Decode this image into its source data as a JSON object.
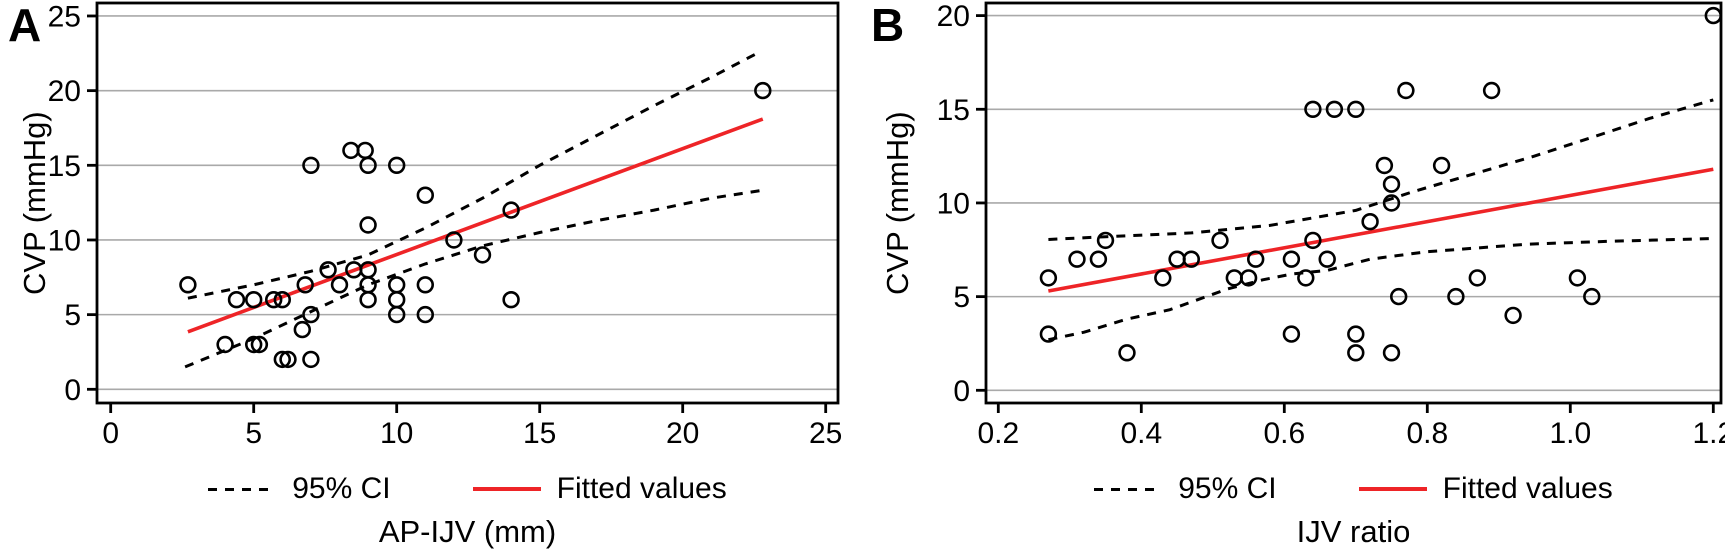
{
  "colors": {
    "fit_line": "#ee2427",
    "ci_line": "#000000",
    "grid_line": "#a9a9a9",
    "axis": "#000000",
    "marker_stroke": "#000000",
    "background": "#ffffff"
  },
  "chart_data": [
    {
      "type": "scatter",
      "panel_label": "A",
      "title": "",
      "xlabel": "AP-IJV (mm)",
      "ylabel": "CVP (mmHg)",
      "xlim": [
        -0.5,
        25.9
      ],
      "ylim": [
        -0.9,
        25.9
      ],
      "x_ticks": [
        0,
        5,
        10,
        15,
        20,
        25
      ],
      "x_tick_labels": [
        "0",
        "5",
        "10",
        "15",
        "20",
        "25"
      ],
      "y_ticks": [
        0,
        5,
        10,
        15,
        20,
        25
      ],
      "y_tick_labels": [
        "0",
        "5",
        "10",
        "15",
        "20",
        "25"
      ],
      "grid": "horizontal",
      "legend": [
        "95% CI",
        "Fitted values"
      ],
      "legend_position": "bottom",
      "points": [
        [
          2.7,
          7
        ],
        [
          4,
          3
        ],
        [
          4.4,
          6
        ],
        [
          5,
          6
        ],
        [
          5,
          3
        ],
        [
          5.2,
          3
        ],
        [
          5.7,
          6
        ],
        [
          6,
          6
        ],
        [
          6,
          2
        ],
        [
          6.2,
          2
        ],
        [
          7,
          2
        ],
        [
          6.7,
          4
        ],
        [
          6.8,
          7
        ],
        [
          7,
          5
        ],
        [
          7,
          15
        ],
        [
          7.6,
          8
        ],
        [
          8,
          7
        ],
        [
          8.4,
          16
        ],
        [
          8.5,
          8
        ],
        [
          8.9,
          16
        ],
        [
          9,
          6
        ],
        [
          9,
          7
        ],
        [
          9,
          8
        ],
        [
          9,
          11
        ],
        [
          9,
          15
        ],
        [
          10,
          5
        ],
        [
          10,
          6
        ],
        [
          10,
          7
        ],
        [
          10,
          15
        ],
        [
          11,
          5
        ],
        [
          11,
          7
        ],
        [
          11,
          13
        ],
        [
          12,
          10
        ],
        [
          13,
          9
        ],
        [
          14,
          6
        ],
        [
          14,
          12
        ],
        [
          22.8,
          20
        ]
      ],
      "fit_line": {
        "x": [
          2.7,
          22.8
        ],
        "y": [
          3.85,
          18.1
        ]
      },
      "ci_upper": [
        [
          2.7,
          6.1
        ],
        [
          5,
          7.0
        ],
        [
          7,
          7.9
        ],
        [
          9,
          9.0
        ],
        [
          11,
          10.8
        ],
        [
          13,
          12.8
        ],
        [
          15,
          15.0
        ],
        [
          17,
          17.0
        ],
        [
          19,
          19.0
        ],
        [
          21,
          20.9
        ],
        [
          22.6,
          22.5
        ]
      ],
      "ci_lower": [
        [
          2.6,
          1.5
        ],
        [
          5,
          3.4
        ],
        [
          7,
          5.2
        ],
        [
          9,
          7.0
        ],
        [
          11,
          8.4
        ],
        [
          13,
          9.6
        ],
        [
          15,
          10.5
        ],
        [
          17,
          11.3
        ],
        [
          19,
          12.0
        ],
        [
          21,
          12.8
        ],
        [
          22.7,
          13.3
        ]
      ]
    },
    {
      "type": "scatter",
      "panel_label": "B",
      "title": "",
      "xlabel": "IJV ratio",
      "ylabel": "CVP (mmHg)",
      "xlim": [
        0.18,
        1.21
      ],
      "ylim": [
        -0.7,
        20.7
      ],
      "x_ticks": [
        0.2,
        0.4,
        0.6,
        0.8,
        1.0,
        1.2
      ],
      "x_tick_labels": [
        "0.2",
        "0.4",
        "0.6",
        "0.8",
        "1.0",
        "1.2"
      ],
      "y_ticks": [
        0,
        5,
        10,
        15,
        20
      ],
      "y_tick_labels": [
        "0",
        "5",
        "10",
        "15",
        "20"
      ],
      "grid": "horizontal",
      "legend": [
        "95% CI",
        "Fitted values"
      ],
      "legend_position": "bottom",
      "points": [
        [
          0.27,
          6
        ],
        [
          0.27,
          3
        ],
        [
          0.31,
          7
        ],
        [
          0.34,
          7
        ],
        [
          0.35,
          8
        ],
        [
          0.38,
          2
        ],
        [
          0.43,
          6
        ],
        [
          0.45,
          7
        ],
        [
          0.47,
          7
        ],
        [
          0.51,
          8
        ],
        [
          0.53,
          6
        ],
        [
          0.55,
          6
        ],
        [
          0.56,
          7
        ],
        [
          0.61,
          7
        ],
        [
          0.61,
          3
        ],
        [
          0.63,
          6
        ],
        [
          0.64,
          8
        ],
        [
          0.64,
          15
        ],
        [
          0.66,
          7
        ],
        [
          0.67,
          15
        ],
        [
          0.7,
          15
        ],
        [
          0.7,
          3
        ],
        [
          0.7,
          2
        ],
        [
          0.72,
          9
        ],
        [
          0.74,
          12
        ],
        [
          0.75,
          11
        ],
        [
          0.75,
          10
        ],
        [
          0.75,
          2
        ],
        [
          0.76,
          5
        ],
        [
          0.77,
          16
        ],
        [
          0.82,
          12
        ],
        [
          0.84,
          5
        ],
        [
          0.87,
          6
        ],
        [
          0.89,
          16
        ],
        [
          0.92,
          4
        ],
        [
          1.01,
          6
        ],
        [
          1.03,
          5
        ],
        [
          1.2,
          20
        ]
      ],
      "fit_line": {
        "x": [
          0.27,
          1.2
        ],
        "y": [
          5.3,
          11.8
        ]
      },
      "ci_upper": [
        [
          0.27,
          8.05
        ],
        [
          0.35,
          8.2
        ],
        [
          0.47,
          8.4
        ],
        [
          0.58,
          8.8
        ],
        [
          0.7,
          9.6
        ],
        [
          0.78,
          10.6
        ],
        [
          0.95,
          12.5
        ],
        [
          1.03,
          13.5
        ],
        [
          1.11,
          14.5
        ],
        [
          1.2,
          15.5
        ]
      ],
      "ci_lower": [
        [
          0.27,
          2.7
        ],
        [
          0.32,
          3.1
        ],
        [
          0.38,
          3.8
        ],
        [
          0.44,
          4.3
        ],
        [
          0.52,
          5.4
        ],
        [
          0.57,
          5.9
        ],
        [
          0.61,
          6.2
        ],
        [
          0.66,
          6.4
        ],
        [
          0.72,
          7.0
        ],
        [
          0.8,
          7.4
        ],
        [
          0.94,
          7.8
        ],
        [
          1.05,
          7.95
        ],
        [
          1.2,
          8.1
        ]
      ]
    }
  ]
}
